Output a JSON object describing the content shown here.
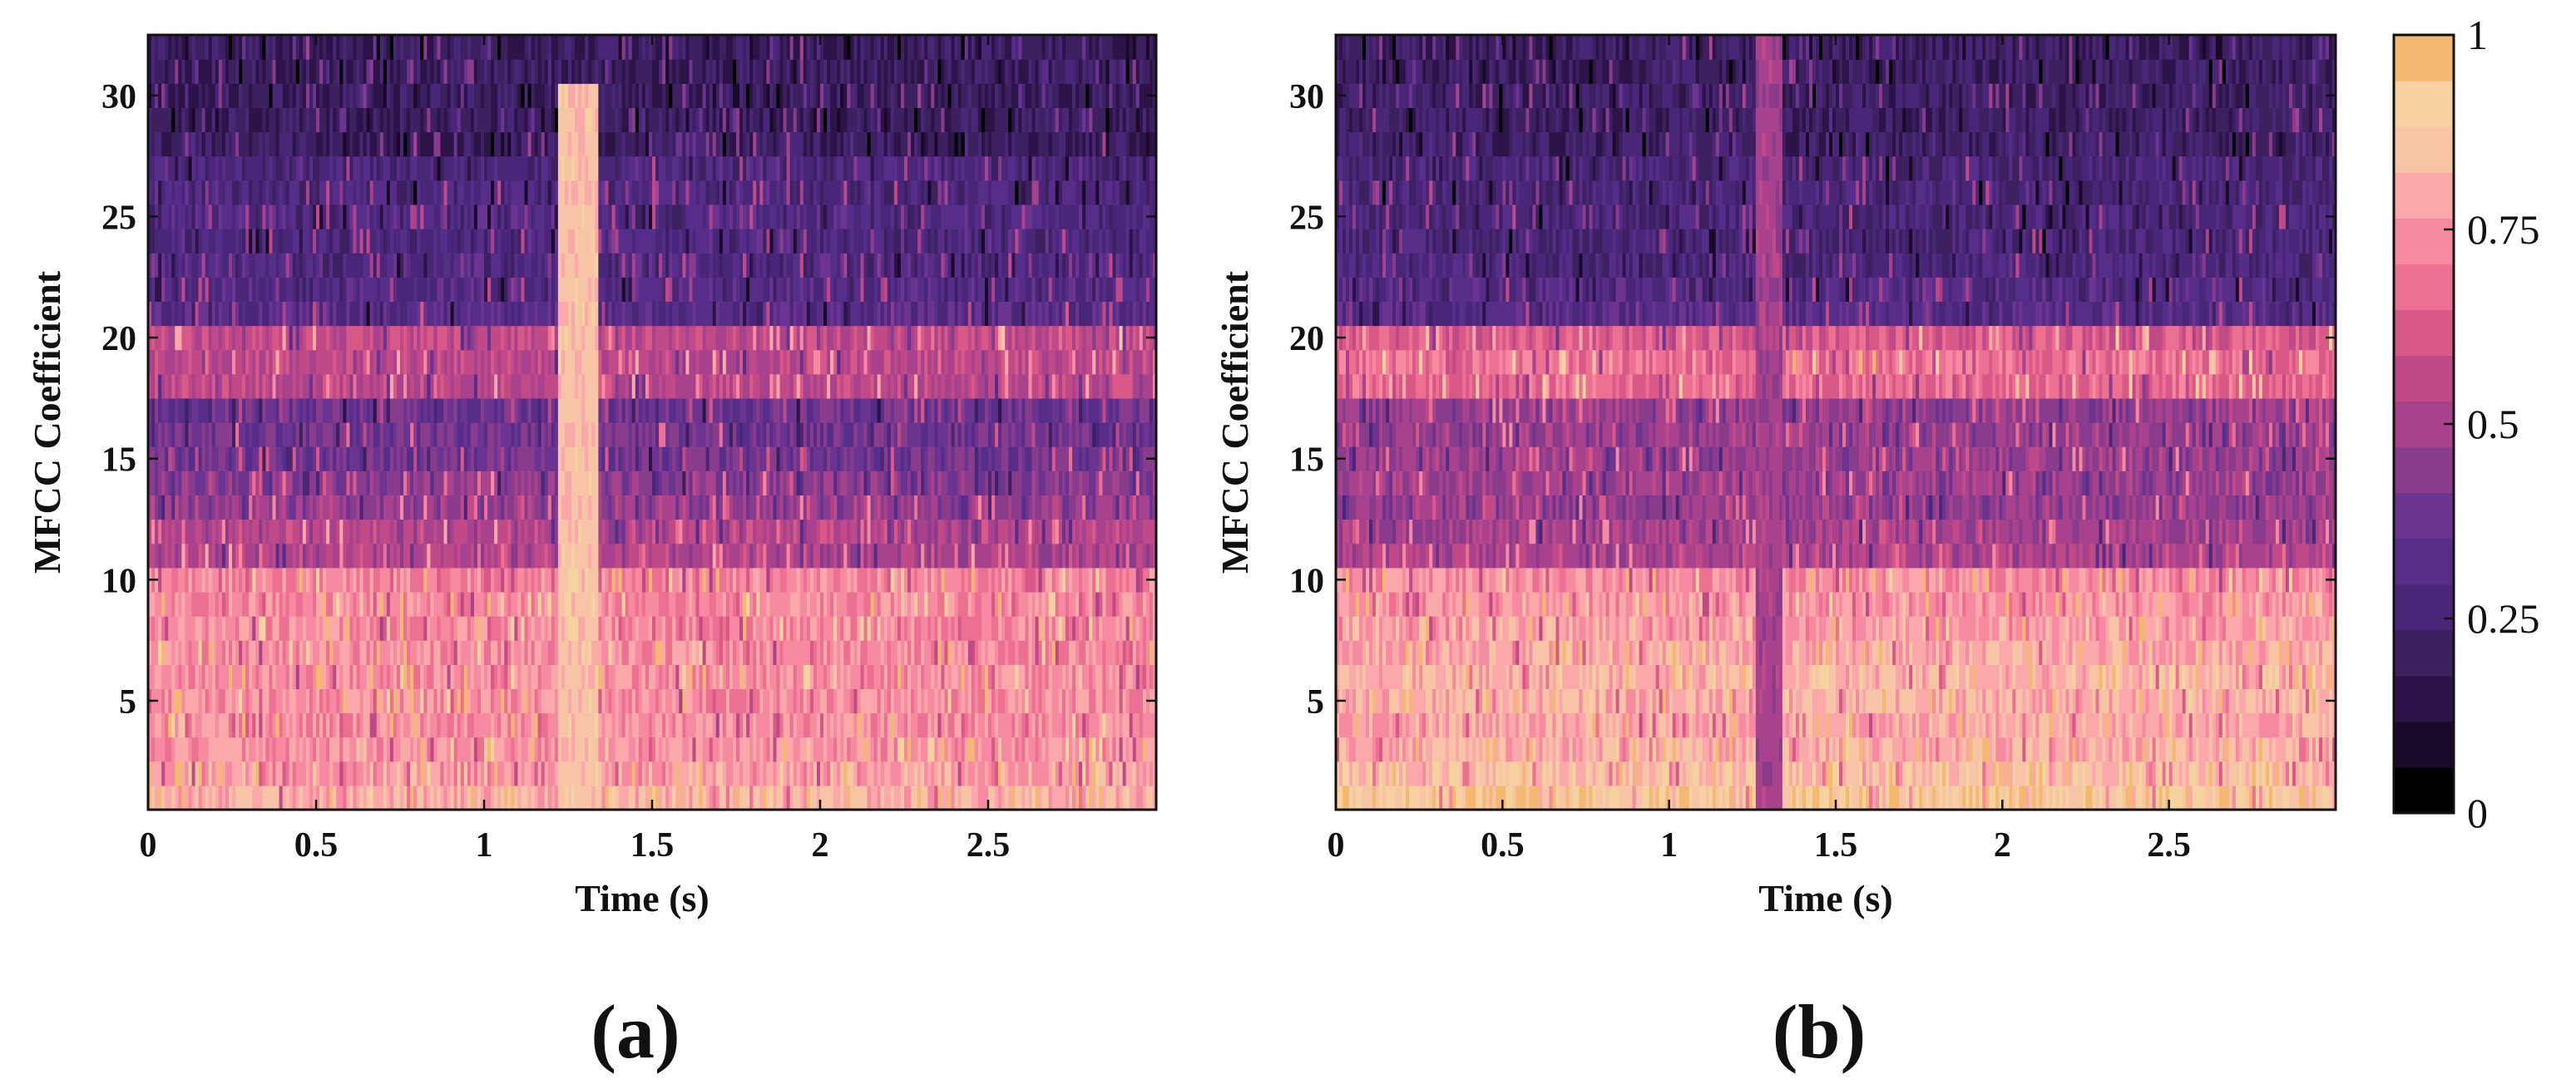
{
  "figure": {
    "colorbar": {
      "ticks": [
        "0",
        "0.25",
        "0.5",
        "0.75",
        "1"
      ],
      "tick_values": [
        0,
        0.25,
        0.5,
        0.75,
        1
      ],
      "levels": 16,
      "colors": [
        "#000000",
        "#1a0a2a",
        "#2d1448",
        "#3c2060",
        "#4a2678",
        "#562e8a",
        "#6a3490",
        "#8a3c8c",
        "#a8428c",
        "#c04a88",
        "#d85888",
        "#ec7092",
        "#f58aa0",
        "#fba8aa",
        "#f8c4a6",
        "#f5d2a0",
        "#f4b870"
      ]
    }
  },
  "chart_data": [
    {
      "type": "heatmap",
      "panel_label": "(a)",
      "xlabel": "Time (s)",
      "ylabel": "MFCC Coefficient",
      "xlim": [
        0,
        3
      ],
      "ylim": [
        0.5,
        32.5
      ],
      "xticks": [
        0,
        0.5,
        1,
        1.5,
        2,
        2.5
      ],
      "xtick_labels": [
        "0",
        "0.5",
        "1",
        "1.5",
        "2",
        "2.5"
      ],
      "yticks": [
        5,
        10,
        15,
        20,
        25,
        30
      ],
      "ytick_labels": [
        "5",
        "10",
        "15",
        "20",
        "25",
        "30"
      ],
      "coefficients": 32,
      "frames": 300,
      "color_range": [
        0,
        1
      ],
      "band_means": [
        0.86,
        0.82,
        0.8,
        0.8,
        0.79,
        0.79,
        0.78,
        0.78,
        0.77,
        0.76,
        0.56,
        0.56,
        0.5,
        0.47,
        0.42,
        0.42,
        0.4,
        0.58,
        0.58,
        0.6,
        0.34,
        0.32,
        0.31,
        0.31,
        0.31,
        0.3,
        0.3,
        0.22,
        0.21,
        0.21,
        0.21,
        0.21
      ],
      "event": {
        "start_s": 1.22,
        "end_s": 1.34,
        "peak_value": 0.95,
        "top_coefficient": 30
      }
    },
    {
      "type": "heatmap",
      "panel_label": "(b)",
      "xlabel": "Time (s)",
      "ylabel": "MFCC Coefficient",
      "xlim": [
        0,
        3
      ],
      "ylim": [
        0.5,
        32.5
      ],
      "xticks": [
        0,
        0.5,
        1,
        1.5,
        2,
        2.5
      ],
      "xtick_labels": [
        "0",
        "0.5",
        "1",
        "1.5",
        "2",
        "2.5"
      ],
      "yticks": [
        5,
        10,
        15,
        20,
        25,
        30
      ],
      "ytick_labels": [
        "5",
        "10",
        "15",
        "20",
        "25",
        "30"
      ],
      "coefficients": 32,
      "frames": 300,
      "color_range": [
        0,
        1
      ],
      "band_means": [
        0.95,
        0.9,
        0.86,
        0.84,
        0.86,
        0.88,
        0.84,
        0.82,
        0.8,
        0.79,
        0.55,
        0.52,
        0.5,
        0.5,
        0.5,
        0.5,
        0.5,
        0.7,
        0.72,
        0.66,
        0.34,
        0.32,
        0.3,
        0.28,
        0.28,
        0.27,
        0.27,
        0.24,
        0.23,
        0.23,
        0.23,
        0.23
      ],
      "event": {
        "start_s": 1.26,
        "end_s": 1.34,
        "peak_value": 0.58,
        "top_coefficient": 32
      }
    }
  ]
}
